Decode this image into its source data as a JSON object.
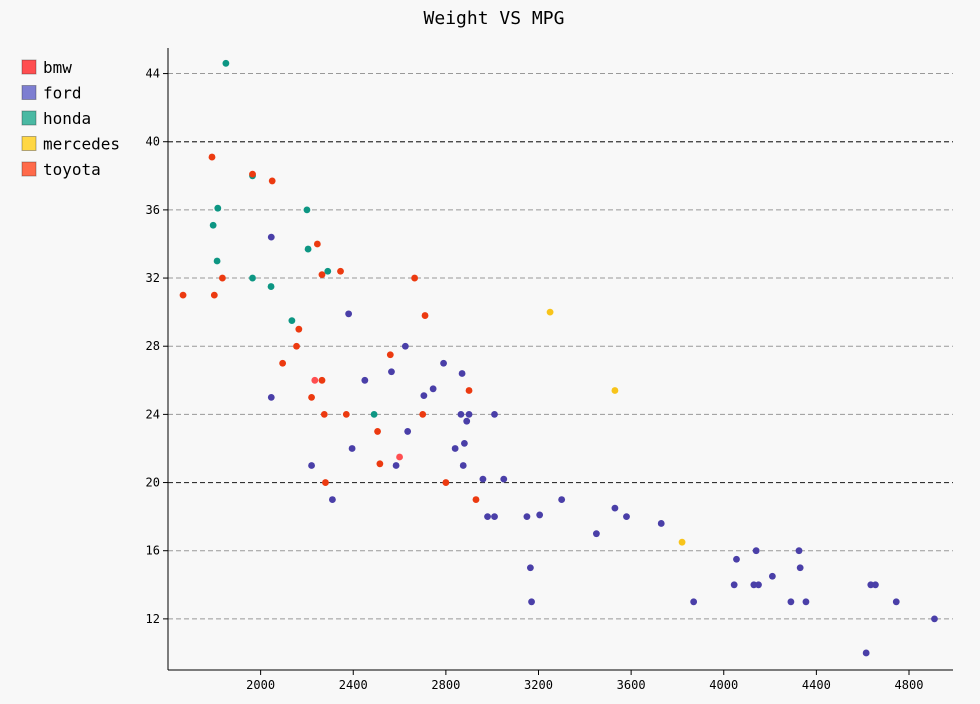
{
  "chart_data": {
    "type": "scatter",
    "title": "Weight VS MPG",
    "xlabel": "",
    "ylabel": "",
    "xlim": [
      1600,
      4990
    ],
    "ylim": [
      9,
      45.5
    ],
    "x_ticks": [
      2000,
      2400,
      2800,
      3200,
      3600,
      4000,
      4400,
      4800
    ],
    "y_ticks": [
      12,
      16,
      20,
      24,
      28,
      32,
      36,
      40,
      44
    ],
    "y_major_lines": [
      20,
      40
    ],
    "grid": "horizontal-dashed",
    "legend_position": "top-left",
    "series": [
      {
        "name": "bmw",
        "color": "#ff4e50",
        "x": [
          2234,
          2600
        ],
        "y": [
          26,
          21.5
        ]
      },
      {
        "name": "ford",
        "color": "#7d7ed1",
        "point_color": "#4a3fa8",
        "x": [
          2046,
          2046,
          2220,
          2310,
          2380,
          2395,
          2450,
          2565,
          2585,
          2625,
          2635,
          2705,
          2745,
          2790,
          2840,
          2865,
          2870,
          2875,
          2880,
          2890,
          2900,
          2960,
          2980,
          3010,
          3010,
          3050,
          3150,
          3165,
          3170,
          3205,
          3300,
          3450,
          3530,
          3580,
          3730,
          3870,
          4045,
          4055,
          4130,
          4140,
          4150,
          4210,
          4290,
          4325,
          4330,
          4355,
          4615,
          4635,
          4655,
          4745,
          4910
        ],
        "y": [
          34.4,
          25,
          21,
          19,
          29.9,
          22,
          26,
          26.5,
          21,
          28,
          23,
          25.1,
          25.5,
          27,
          22,
          24,
          26.4,
          21,
          22.3,
          23.6,
          24,
          20.2,
          18,
          18,
          24,
          20.2,
          18,
          15,
          13,
          18.1,
          19,
          17,
          18.5,
          18,
          17.6,
          13,
          14,
          15.5,
          14,
          16,
          14,
          14.5,
          13,
          16,
          15,
          13,
          10,
          14,
          14,
          13,
          12
        ]
      },
      {
        "name": "honda",
        "color": "#4ab9a3",
        "point_color": "#0d9683",
        "x": [
          1850,
          1795,
          1815,
          1812,
          1965,
          1965,
          2045,
          2135,
          2200,
          2205,
          2290,
          2490
        ],
        "y": [
          44.6,
          35.1,
          36.1,
          33,
          38,
          32,
          31.5,
          29.5,
          36,
          33.7,
          32.4,
          24
        ]
      },
      {
        "name": "mercedes",
        "color": "#ffd744",
        "point_color": "#f8c41a",
        "x": [
          3250,
          3530,
          3820
        ],
        "y": [
          30,
          25.4,
          16.5
        ]
      },
      {
        "name": "toyota",
        "color": "#ff6a4a",
        "point_color": "#ec3a10",
        "x": [
          1665,
          1790,
          1800,
          1835,
          1965,
          2050,
          2095,
          2155,
          2165,
          2220,
          2245,
          2265,
          2265,
          2275,
          2280,
          2345,
          2370,
          2505,
          2515,
          2560,
          2665,
          2700,
          2710,
          2800,
          2900,
          2930
        ],
        "y": [
          31,
          39.1,
          31,
          32,
          38.1,
          37.7,
          27,
          28,
          29,
          25,
          34,
          32.2,
          26,
          24,
          20,
          32.4,
          24,
          23,
          21.1,
          27.5,
          32,
          24,
          29.8,
          20,
          25.4,
          19
        ]
      }
    ]
  }
}
